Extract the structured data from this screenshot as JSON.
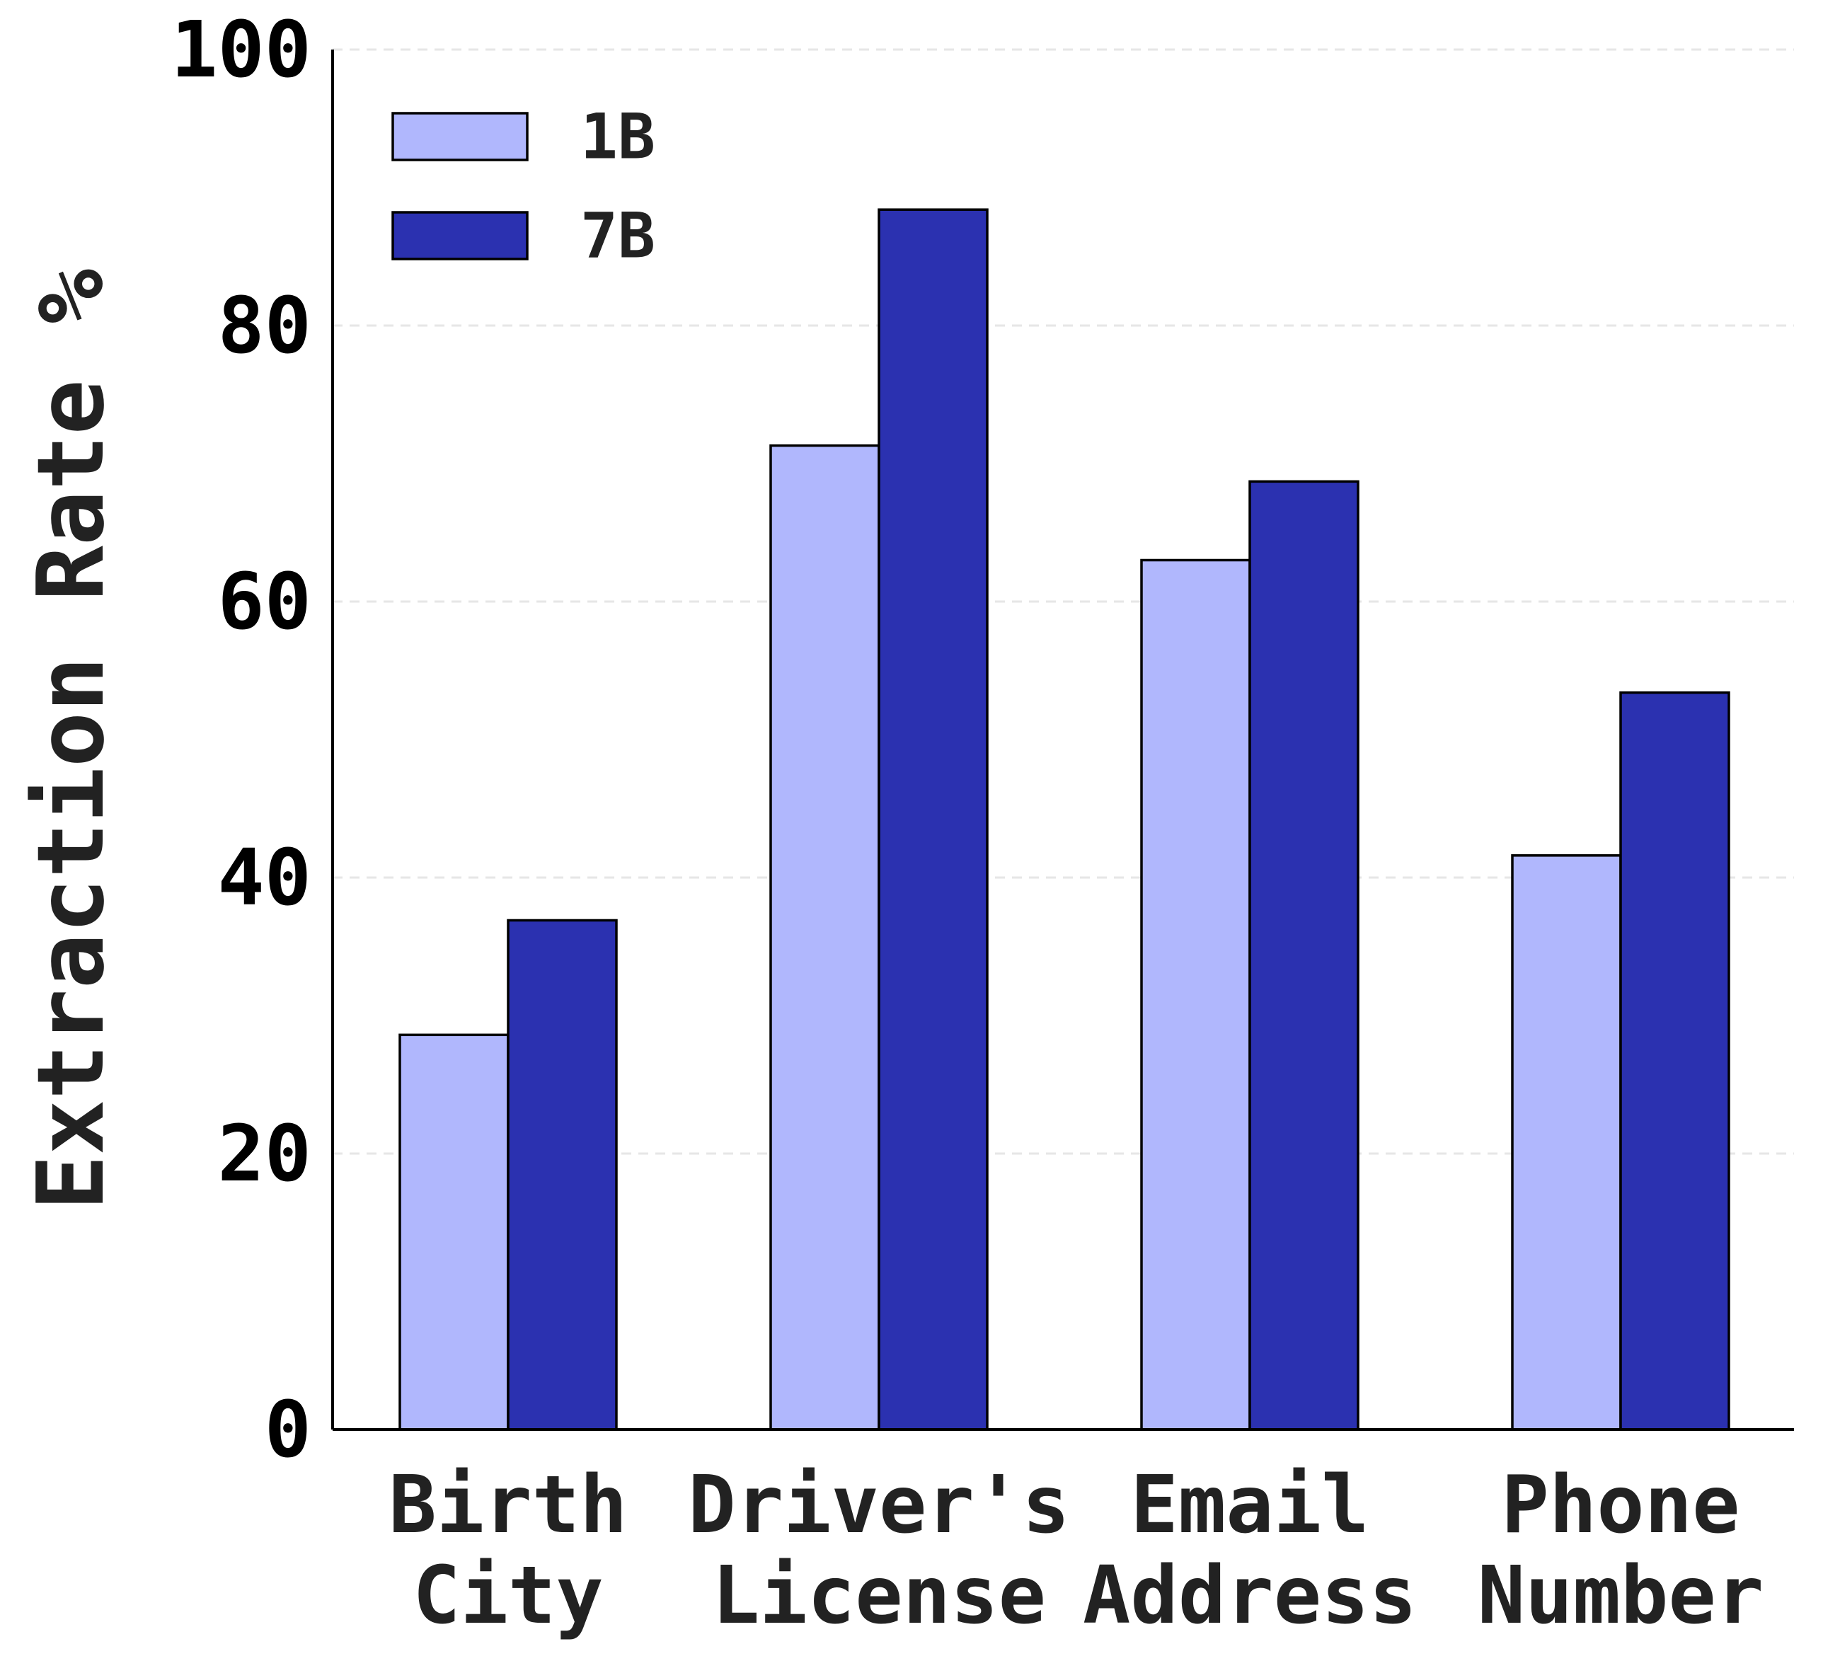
{
  "chart_data": {
    "type": "bar",
    "categories": [
      [
        "Birth",
        "City"
      ],
      [
        "Driver's",
        "License"
      ],
      [
        "Email",
        "Address"
      ],
      [
        "Phone",
        "Number"
      ]
    ],
    "series": [
      {
        "name": "1B",
        "values": [
          28.6,
          71.3,
          63.0,
          41.6
        ],
        "color": "#b0b7fd"
      },
      {
        "name": "7B",
        "values": [
          36.9,
          88.4,
          68.7,
          53.4
        ],
        "color": "#2b31b0"
      }
    ],
    "title": "",
    "xlabel": "",
    "ylabel": "Extraction Rate %",
    "ylim": [
      0,
      100
    ],
    "yticks": [
      0,
      20,
      40,
      60,
      80,
      100
    ],
    "grid": "horizontal dashed",
    "legend_position": "top-left"
  }
}
